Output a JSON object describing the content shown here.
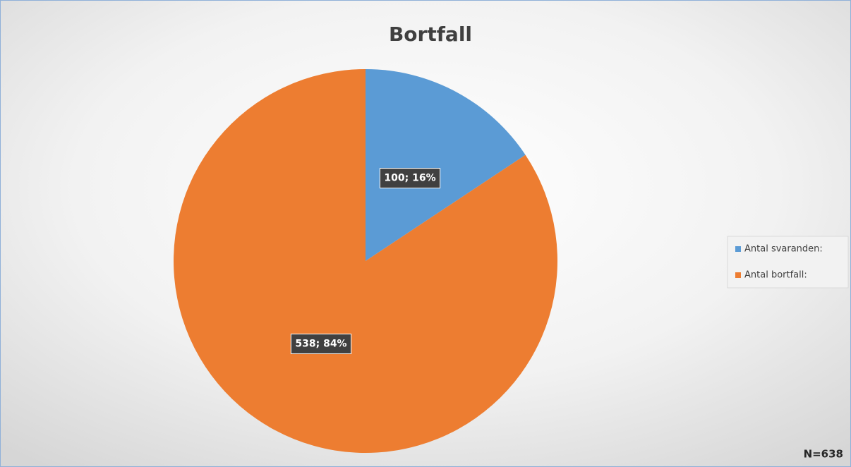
{
  "chart_data": {
    "type": "pie",
    "title": "Bortfall",
    "categories": [
      "Antal svaranden:",
      "Antal bortfall:"
    ],
    "values": [
      100,
      538
    ],
    "value_labels": [
      "100; 16%",
      "538; 84%"
    ],
    "colors": [
      "#5b9bd5",
      "#ed7d31"
    ],
    "legend": "right",
    "annotation": "N=638"
  }
}
